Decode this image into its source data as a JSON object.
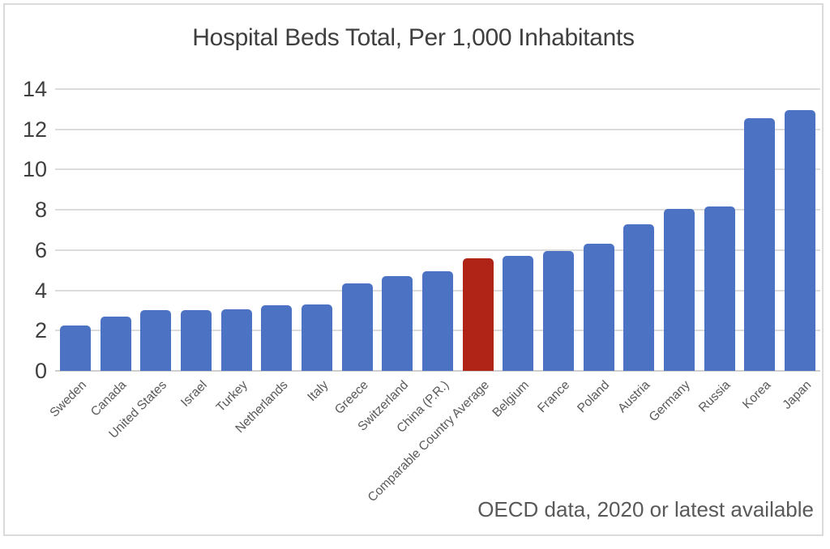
{
  "chart_data": {
    "type": "bar",
    "title": "Hospital Beds Total, Per 1,000 Inhabitants",
    "source_note": "OECD data, 2020 or latest available",
    "categories": [
      "Sweden",
      "Canada",
      "United States",
      "Israel",
      "Turkey",
      "Netherlands",
      "Italy",
      "Greece",
      "Switzerland",
      "China (P.R.)",
      "Comparable Country Average",
      "Belgium",
      "France",
      "Poland",
      "Austria",
      "Germany",
      "Russia",
      "Korea",
      "Japan"
    ],
    "values": [
      2.25,
      2.7,
      3.0,
      3.0,
      3.05,
      3.25,
      3.3,
      4.35,
      4.7,
      4.95,
      5.6,
      5.7,
      5.95,
      6.3,
      7.3,
      8.05,
      8.15,
      12.55,
      12.95
    ],
    "highlight_category": "Comparable Country Average",
    "highlight_index": 10,
    "bar_color": "#4c72c4",
    "highlight_color": "#b02418",
    "yticks": [
      0,
      2,
      4,
      6,
      8,
      10,
      12,
      14
    ],
    "ylim": [
      0,
      14
    ],
    "xlabel": "",
    "ylabel": "",
    "grid": true,
    "gridline_color": "#dcdcdc",
    "legend_position": "none",
    "x_label_rotation_deg": 45
  }
}
